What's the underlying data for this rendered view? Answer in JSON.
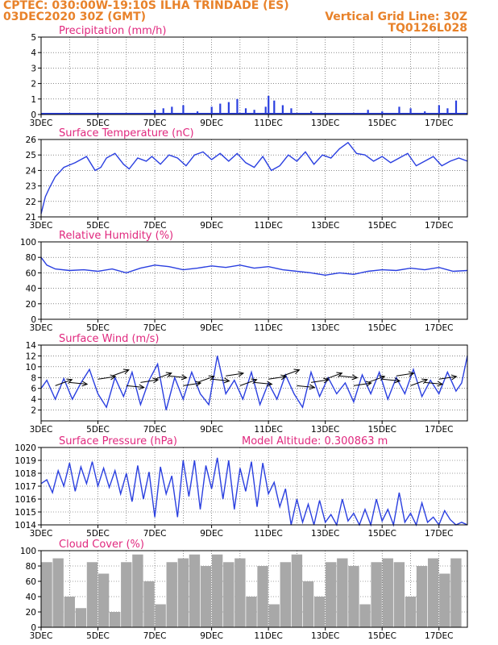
{
  "header": {
    "line1": "CPTEC:    030:00W-19:10S   ILHA TRINDADE (ES)",
    "line2": "03DEC2020 30Z (GMT)",
    "grid_note": "Vertical Grid Line: 30Z",
    "code": "TQ0126L028"
  },
  "x_tick_labels": [
    "3DEC",
    "5DEC",
    "7DEC",
    "9DEC",
    "11DEC",
    "13DEC",
    "15DEC",
    "17DEC"
  ],
  "colors": {
    "header": "#e8822a",
    "title": "#e0287e",
    "line": "#2a3fe0",
    "arrow": "#000000",
    "cloud": "#a8a8a8"
  },
  "chart_data": [
    {
      "type": "bar",
      "title": "Precipitation (mm/h)",
      "ylim": [
        0,
        5
      ],
      "yticks": [
        0,
        1,
        2,
        3,
        4,
        5
      ],
      "xlim_days": [
        3,
        18
      ],
      "x": [
        7.0,
        7.3,
        7.6,
        8.0,
        8.5,
        9.0,
        9.3,
        9.6,
        9.9,
        10.2,
        10.5,
        10.9,
        11.0,
        11.2,
        11.5,
        11.8,
        12.5,
        13.0,
        14.0,
        14.5,
        15.0,
        15.6,
        16.0,
        16.5,
        17.0,
        17.3,
        17.6
      ],
      "values": [
        0.3,
        0.4,
        0.5,
        0.6,
        0.2,
        0.5,
        0.7,
        0.8,
        1.0,
        0.4,
        0.3,
        0.5,
        1.2,
        0.9,
        0.6,
        0.4,
        0.2,
        0.1,
        0.1,
        0.3,
        0.2,
        0.5,
        0.4,
        0.2,
        0.6,
        0.4,
        0.9
      ]
    },
    {
      "type": "line",
      "title": "Surface Temperature (nC)",
      "ylim": [
        21,
        26
      ],
      "yticks": [
        21,
        22,
        23,
        24,
        25,
        26
      ],
      "xlim_days": [
        3,
        18
      ],
      "x": [
        3.0,
        3.15,
        3.3,
        3.5,
        3.8,
        4.2,
        4.6,
        4.9,
        5.1,
        5.3,
        5.6,
        5.9,
        6.1,
        6.4,
        6.7,
        6.9,
        7.2,
        7.5,
        7.8,
        8.1,
        8.4,
        8.7,
        9.0,
        9.3,
        9.6,
        9.9,
        10.2,
        10.5,
        10.8,
        11.1,
        11.4,
        11.7,
        12.0,
        12.3,
        12.6,
        12.9,
        13.2,
        13.5,
        13.8,
        14.1,
        14.4,
        14.7,
        15.0,
        15.3,
        15.6,
        15.9,
        16.2,
        16.5,
        16.8,
        17.1,
        17.4,
        17.7,
        18.0
      ],
      "values": [
        21.2,
        22.3,
        22.9,
        23.6,
        24.2,
        24.5,
        24.9,
        24.0,
        24.2,
        24.8,
        25.1,
        24.4,
        24.1,
        24.8,
        24.6,
        24.9,
        24.4,
        25.0,
        24.8,
        24.3,
        25.0,
        25.2,
        24.7,
        25.1,
        24.6,
        25.1,
        24.5,
        24.2,
        24.9,
        24.0,
        24.3,
        25.0,
        24.6,
        25.2,
        24.4,
        25.0,
        24.8,
        25.4,
        25.8,
        25.1,
        25.0,
        24.6,
        24.9,
        24.5,
        24.8,
        25.1,
        24.3,
        24.6,
        24.9,
        24.3,
        24.6,
        24.8,
        24.6
      ]
    },
    {
      "type": "line",
      "title": "Relative Humidity (%)",
      "ylim": [
        0,
        100
      ],
      "yticks": [
        0,
        20,
        40,
        60,
        80,
        100
      ],
      "xlim_days": [
        3,
        18
      ],
      "x": [
        3.0,
        3.2,
        3.5,
        4.0,
        4.5,
        5.0,
        5.5,
        6.0,
        6.5,
        7.0,
        7.5,
        8.0,
        8.5,
        9.0,
        9.5,
        10.0,
        10.5,
        11.0,
        11.5,
        12.0,
        12.5,
        13.0,
        13.5,
        14.0,
        14.5,
        15.0,
        15.5,
        16.0,
        16.5,
        17.0,
        17.5,
        18.0
      ],
      "values": [
        80,
        70,
        65,
        63,
        64,
        62,
        65,
        60,
        66,
        70,
        68,
        64,
        66,
        69,
        67,
        70,
        66,
        68,
        64,
        62,
        60,
        57,
        60,
        58,
        62,
        64,
        63,
        66,
        64,
        67,
        62,
        63
      ]
    },
    {
      "type": "line",
      "title": "Surface Wind (m/s)",
      "ylim": [
        0,
        14
      ],
      "yticks": [
        2,
        4,
        6,
        8,
        10,
        12,
        14
      ],
      "xlim_days": [
        3,
        18
      ],
      "x": [
        3.0,
        3.2,
        3.5,
        3.8,
        4.1,
        4.4,
        4.7,
        5.0,
        5.3,
        5.6,
        5.9,
        6.2,
        6.5,
        6.8,
        7.1,
        7.4,
        7.7,
        8.0,
        8.3,
        8.6,
        8.9,
        9.2,
        9.5,
        9.8,
        10.1,
        10.4,
        10.7,
        11.0,
        11.3,
        11.6,
        11.9,
        12.2,
        12.5,
        12.8,
        13.1,
        13.4,
        13.7,
        14.0,
        14.3,
        14.6,
        14.9,
        15.2,
        15.5,
        15.8,
        16.1,
        16.4,
        16.7,
        17.0,
        17.3,
        17.6,
        17.8,
        18.0
      ],
      "values": [
        6.0,
        7.5,
        4.0,
        7.8,
        4.0,
        7.0,
        9.5,
        5.0,
        2.5,
        8.0,
        4.5,
        9.0,
        3.0,
        7.5,
        10.5,
        2.0,
        8.0,
        4.0,
        9.0,
        5.0,
        3.0,
        12.0,
        5.0,
        7.5,
        4.0,
        9.0,
        3.0,
        7.0,
        4.0,
        8.5,
        5.0,
        2.5,
        9.0,
        4.5,
        8.0,
        5.0,
        7.0,
        3.5,
        8.5,
        5.0,
        9.0,
        4.0,
        8.0,
        5.0,
        9.5,
        4.5,
        7.5,
        5.0,
        9.0,
        5.5,
        7.0,
        12.0
      ],
      "arrows_x": [
        3.5,
        4.0,
        5.0,
        5.5,
        6.0,
        6.5,
        7.0,
        7.5,
        8.0,
        8.5,
        9.0,
        9.5,
        10.0,
        10.5,
        11.0,
        11.5,
        12.0,
        12.5,
        13.0,
        13.5,
        14.0,
        14.5,
        15.0,
        15.5,
        16.0,
        16.5,
        17.0
      ]
    },
    {
      "type": "line",
      "title": "Surface Pressure (hPa)",
      "subtitle": "Model Altitude: 0.300863 m",
      "ylim": [
        1014,
        1020
      ],
      "yticks": [
        1014,
        1015,
        1016,
        1017,
        1018,
        1019,
        1020
      ],
      "xlim_days": [
        3,
        18
      ],
      "x": [
        3.0,
        3.2,
        3.4,
        3.6,
        3.8,
        4.0,
        4.2,
        4.4,
        4.6,
        4.8,
        5.0,
        5.2,
        5.4,
        5.6,
        5.8,
        6.0,
        6.2,
        6.4,
        6.6,
        6.8,
        7.0,
        7.2,
        7.4,
        7.6,
        7.8,
        8.0,
        8.2,
        8.4,
        8.6,
        8.8,
        9.0,
        9.2,
        9.4,
        9.6,
        9.8,
        10.0,
        10.2,
        10.4,
        10.6,
        10.8,
        11.0,
        11.2,
        11.4,
        11.6,
        11.8,
        12.0,
        12.2,
        12.4,
        12.6,
        12.8,
        13.0,
        13.2,
        13.4,
        13.6,
        13.8,
        14.0,
        14.2,
        14.4,
        14.6,
        14.8,
        15.0,
        15.2,
        15.4,
        15.6,
        15.8,
        16.0,
        16.2,
        16.4,
        16.6,
        16.8,
        17.0,
        17.2,
        17.4,
        17.6,
        17.8,
        18.0
      ],
      "values": [
        1017.2,
        1017.5,
        1016.5,
        1018.2,
        1017.0,
        1018.8,
        1016.6,
        1018.5,
        1017.2,
        1018.9,
        1017.0,
        1018.4,
        1016.9,
        1018.2,
        1016.4,
        1018.0,
        1015.8,
        1018.6,
        1016.0,
        1018.1,
        1014.6,
        1018.5,
        1016.4,
        1017.8,
        1014.6,
        1019.0,
        1016.2,
        1019.0,
        1015.2,
        1018.6,
        1016.8,
        1019.2,
        1016.0,
        1019.0,
        1015.2,
        1018.4,
        1016.6,
        1018.9,
        1015.4,
        1018.8,
        1016.4,
        1017.3,
        1015.4,
        1016.8,
        1014.0,
        1016.0,
        1014.2,
        1015.6,
        1014.0,
        1015.9,
        1014.2,
        1014.8,
        1014.0,
        1016.0,
        1014.3,
        1014.9,
        1014.0,
        1015.2,
        1014.0,
        1016.0,
        1014.3,
        1015.2,
        1014.0,
        1016.5,
        1014.2,
        1014.9,
        1014.0,
        1015.7,
        1014.2,
        1014.6,
        1014.0,
        1015.1,
        1014.4,
        1014.0,
        1014.2,
        1014.0
      ]
    },
    {
      "type": "bar",
      "title": "Cloud Cover (%)",
      "ylim": [
        0,
        100
      ],
      "yticks": [
        0,
        20,
        40,
        60,
        80,
        100
      ],
      "xlim_days": [
        3,
        18
      ],
      "x": [
        3.2,
        3.6,
        4.0,
        4.4,
        4.8,
        5.2,
        5.6,
        6.0,
        6.4,
        6.8,
        7.2,
        7.6,
        8.0,
        8.4,
        8.8,
        9.2,
        9.6,
        10.0,
        10.4,
        10.8,
        11.2,
        11.6,
        12.0,
        12.4,
        12.8,
        13.2,
        13.6,
        14.0,
        14.4,
        14.8,
        15.2,
        15.6,
        16.0,
        16.4,
        16.8,
        17.2,
        17.6
      ],
      "values": [
        85,
        90,
        40,
        25,
        85,
        70,
        20,
        85,
        95,
        60,
        30,
        85,
        90,
        95,
        80,
        95,
        85,
        90,
        40,
        80,
        30,
        85,
        95,
        60,
        40,
        85,
        90,
        80,
        30,
        85,
        90,
        85,
        40,
        80,
        90,
        70,
        90
      ]
    }
  ]
}
